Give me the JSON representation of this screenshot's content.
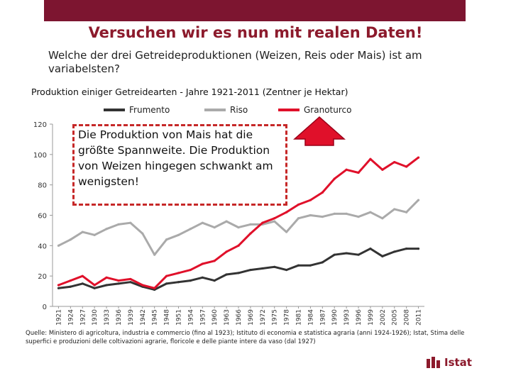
{
  "slide": {
    "title": "Versuchen wir es nun mit realen Daten!",
    "subtitle": "Welche der drei Getreideproduktionen (Weizen, Reis oder Mais) ist am variabelsten?",
    "annotation": "Die Produktion von Mais hat die größte Spannweite. Die Produktion von Weizen hingegen schwankt am wenigsten!",
    "source": "Quelle: Ministero di agricoltura, industria e commercio (fino al 1923); Istituto di economia e statistica agraria (anni 1924-1926); Istat, Stima delle superfici e produzioni delle coltivazioni agrarie, floricole e delle piante intere da vaso (dal 1927)",
    "logo_text": "Istat",
    "colors": {
      "header": "#7d1530",
      "title": "#8c1a2c",
      "accent": "#c62828"
    }
  },
  "chart_data": {
    "type": "line",
    "title": "Produktion einiger Getreidearten - Jahre 1921-2011 (Zentner je Hektar)",
    "xlabel": "",
    "ylabel": "",
    "ylim": [
      0,
      120
    ],
    "yticks": [
      0,
      20,
      40,
      60,
      80,
      100,
      120
    ],
    "x": [
      1921,
      1924,
      1927,
      1930,
      1933,
      1936,
      1939,
      1942,
      1945,
      1948,
      1951,
      1954,
      1957,
      1960,
      1963,
      1966,
      1969,
      1972,
      1975,
      1978,
      1981,
      1984,
      1987,
      1990,
      1993,
      1996,
      1999,
      2002,
      2005,
      2008,
      2011
    ],
    "series": [
      {
        "name": "Frumento",
        "color": "#333333",
        "values": [
          12,
          13,
          15,
          12,
          14,
          15,
          16,
          13,
          11,
          15,
          16,
          17,
          19,
          17,
          21,
          22,
          24,
          25,
          26,
          24,
          27,
          27,
          29,
          34,
          35,
          34,
          38,
          33,
          36,
          38,
          38
        ]
      },
      {
        "name": "Riso",
        "color": "#aaaaaa",
        "values": [
          40,
          44,
          49,
          47,
          51,
          54,
          55,
          48,
          34,
          44,
          47,
          51,
          55,
          52,
          56,
          52,
          54,
          54,
          56,
          49,
          58,
          60,
          59,
          61,
          61,
          59,
          62,
          58,
          64,
          62,
          70
        ]
      },
      {
        "name": "Granoturco",
        "color": "#e0102a",
        "values": [
          14,
          17,
          20,
          14,
          19,
          17,
          18,
          14,
          12,
          20,
          22,
          24,
          28,
          30,
          36,
          40,
          48,
          55,
          58,
          62,
          67,
          70,
          75,
          84,
          90,
          88,
          97,
          90,
          95,
          92,
          98
        ]
      }
    ]
  }
}
